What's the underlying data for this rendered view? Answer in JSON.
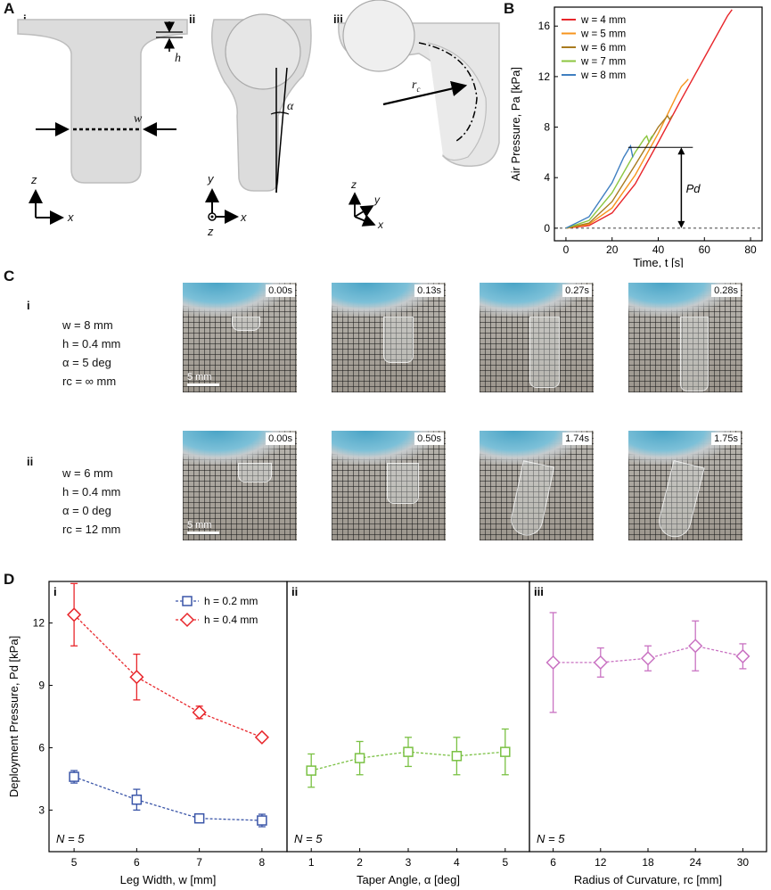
{
  "panel_labels": {
    "A": "A",
    "B": "B",
    "C": "C",
    "D": "D"
  },
  "panel_a": {
    "sub_labels": [
      "i",
      "ii",
      "iii"
    ],
    "dim_labels": {
      "h": "h",
      "w": "w",
      "alpha": "α",
      "rc": "r",
      "rc_sub": "c"
    },
    "axis_labels": {
      "z": "z",
      "x": "x",
      "y": "y"
    }
  },
  "chart_data": [
    {
      "type": "line",
      "panel": "B",
      "xlabel": "Time, t [s]",
      "ylabel": "Air Pressure, Pa [kPa]",
      "xlim": [
        -5,
        85
      ],
      "ylim": [
        -1,
        17.5
      ],
      "xticks": [
        "0",
        "20",
        "40",
        "60",
        "80"
      ],
      "yticks": [
        "0",
        "4",
        "8",
        "12",
        "16"
      ],
      "annotation": "Pd",
      "series": [
        {
          "name": "w = 4 mm",
          "color": "#e8262b",
          "x": [
            0,
            10,
            20,
            30,
            40,
            50,
            60,
            70,
            72
          ],
          "y": [
            0,
            0.2,
            1.2,
            3.5,
            6.8,
            10.2,
            13.5,
            16.8,
            17.3
          ]
        },
        {
          "name": "w = 5 mm",
          "color": "#f7941d",
          "x": [
            0,
            10,
            20,
            30,
            40,
            48,
            50,
            52,
            53
          ],
          "y": [
            0,
            0.3,
            1.6,
            4.2,
            7.5,
            10.5,
            11.2,
            11.6,
            11.8
          ]
        },
        {
          "name": "w = 6 mm",
          "color": "#a87b1f",
          "x": [
            0,
            10,
            20,
            30,
            40,
            44,
            45,
            46
          ],
          "y": [
            0,
            0.4,
            2.1,
            5.0,
            8.0,
            8.9,
            8.6,
            8.9
          ]
        },
        {
          "name": "w = 7 mm",
          "color": "#8cc63f",
          "x": [
            0,
            10,
            20,
            30,
            34,
            35,
            36,
            37,
            38
          ],
          "y": [
            0,
            0.6,
            2.8,
            6.0,
            7.1,
            7.3,
            6.8,
            7.2,
            7.4
          ]
        },
        {
          "name": "w = 8 mm",
          "color": "#3f7fc1",
          "x": [
            0,
            10,
            20,
            25,
            27,
            28,
            29
          ],
          "y": [
            0,
            0.9,
            3.6,
            5.6,
            6.2,
            6.5,
            5.6
          ]
        }
      ],
      "legend_vars": {
        "var": "w",
        "unit": "mm"
      }
    },
    {
      "type": "scatter",
      "panel": "D.i",
      "xlabel": "Leg Width, w [mm]",
      "ylabel": "Deployment Pressure, Pd [kPa]",
      "ylim": [
        1,
        14
      ],
      "xticks": [
        "5",
        "6",
        "7",
        "8"
      ],
      "yticks": [
        "3",
        "6",
        "9",
        "12"
      ],
      "note": "N = 5",
      "series": [
        {
          "name": "h = 0.2 mm",
          "color": "#3a55a8",
          "marker": "square",
          "x": [
            5,
            6,
            7,
            8
          ],
          "y": [
            4.6,
            3.5,
            2.6,
            2.5
          ],
          "err": [
            0.3,
            0.5,
            0.2,
            0.3
          ]
        },
        {
          "name": "h = 0.4 mm",
          "color": "#e8262b",
          "marker": "diamond",
          "x": [
            5,
            6,
            7,
            8
          ],
          "y": [
            12.4,
            9.4,
            7.7,
            6.5
          ],
          "err": [
            1.5,
            1.1,
            0.3,
            0.1
          ]
        }
      ]
    },
    {
      "type": "scatter",
      "panel": "D.ii",
      "xlabel": "Taper Angle, α [deg]",
      "ylim": [
        1,
        14
      ],
      "xticks": [
        "1",
        "2",
        "3",
        "4",
        "5"
      ],
      "note": "N = 5",
      "series": [
        {
          "name": "taper",
          "color": "#7ac143",
          "marker": "square",
          "x": [
            1,
            2,
            3,
            4,
            5
          ],
          "y": [
            4.9,
            5.5,
            5.8,
            5.6,
            5.8
          ],
          "err": [
            0.8,
            0.8,
            0.7,
            0.9,
            1.1
          ]
        }
      ]
    },
    {
      "type": "scatter",
      "panel": "D.iii",
      "xlabel": "Radius of Curvature, rc [mm]",
      "ylim": [
        1,
        14
      ],
      "xticks": [
        "6",
        "12",
        "18",
        "24",
        "30"
      ],
      "note": "N = 5",
      "series": [
        {
          "name": "curvature",
          "color": "#c972c2",
          "marker": "diamond",
          "x": [
            6,
            12,
            18,
            24,
            30
          ],
          "y": [
            10.1,
            10.1,
            10.3,
            10.9,
            10.4
          ],
          "err": [
            2.4,
            0.7,
            0.6,
            1.2,
            0.6
          ]
        }
      ]
    }
  ],
  "panel_c": {
    "rows": [
      {
        "label": "i",
        "params": [
          "w = 8 mm",
          "h = 0.4 mm",
          "α = 5 deg",
          "rc = ∞ mm"
        ],
        "times": [
          "0.00s",
          "0.13s",
          "0.27s",
          "0.28s"
        ]
      },
      {
        "label": "ii",
        "params": [
          "w = 6 mm",
          "h = 0.4 mm",
          "α = 0 deg",
          "rc = 12 mm"
        ],
        "times": [
          "0.00s",
          "0.50s",
          "1.74s",
          "1.75s"
        ]
      }
    ],
    "scale_bar": "5 mm"
  },
  "panel_d": {
    "sub_labels": [
      "i",
      "ii",
      "iii"
    ]
  }
}
